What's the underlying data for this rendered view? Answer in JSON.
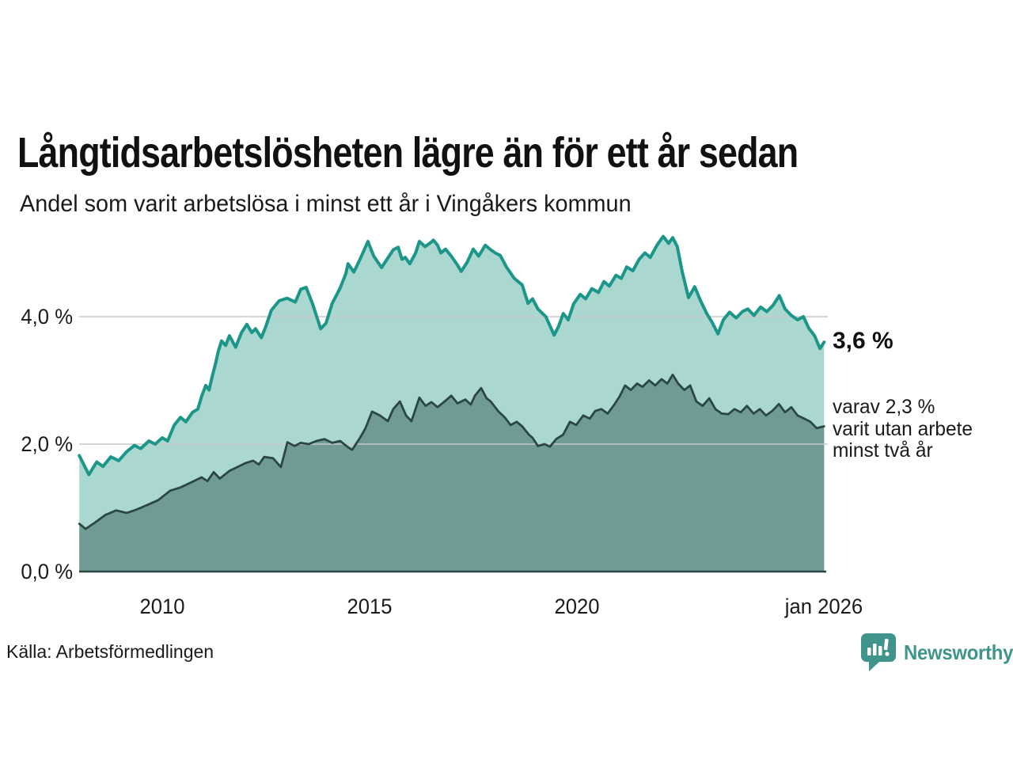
{
  "header": {
    "title": "Långtidsarbetslösheten lägre än för ett år sedan",
    "subtitle": "Andel som varit arbetslösa i minst ett år i Vingåkers kommun"
  },
  "annotations": {
    "latest_total": "3,6 %",
    "sub_annotation": "varav 2,3 %\nvarit utan arbete\nminst två år"
  },
  "footer": {
    "source": "Källa: Arbetsförmedlingen",
    "logo_text": "Newsworthy"
  },
  "colors": {
    "series1_line": "#1b9688",
    "series1_fill": "#aad8d0",
    "series2_line": "#2b4743",
    "series2_fill": "#6f9b94",
    "gridline": "#c9c9c9",
    "baseline": "#2b4743",
    "logo_teal": "#3f948b"
  },
  "chart_data": {
    "type": "area",
    "title": "Långtidsarbetslösheten lägre än för ett år sedan",
    "subtitle": "Andel som varit arbetslösa i minst ett år i Vingåkers kommun",
    "unit": "%",
    "grid": true,
    "legend": "none (annotated at line ends)",
    "xlim": [
      2008.0,
      2026.0
    ],
    "ylim": [
      0,
      5.6
    ],
    "x_ticks": [
      {
        "year": 2010,
        "label": "2010"
      },
      {
        "year": 2015,
        "label": "2015"
      },
      {
        "year": 2020,
        "label": "2020"
      },
      {
        "year": 2025.96,
        "label": "jan 2026"
      }
    ],
    "y_ticks": [
      {
        "value": 0,
        "label": "0,0 %"
      },
      {
        "value": 2,
        "label": "2,0 %"
      },
      {
        "value": 4,
        "label": "4,0 %"
      }
    ],
    "series": [
      {
        "name": "Andel arbetslösa minst ett år",
        "latest_label": "3,6 %",
        "line_color": "#1b9688",
        "fill_color": "#aad8d0",
        "line_width": 4,
        "points": [
          [
            2008.0,
            1.82
          ],
          [
            2008.23,
            1.52
          ],
          [
            2008.42,
            1.72
          ],
          [
            2008.57,
            1.65
          ],
          [
            2008.76,
            1.8
          ],
          [
            2008.95,
            1.74
          ],
          [
            2009.14,
            1.88
          ],
          [
            2009.33,
            1.98
          ],
          [
            2009.48,
            1.93
          ],
          [
            2009.68,
            2.05
          ],
          [
            2009.83,
            2.0
          ],
          [
            2010.0,
            2.1
          ],
          [
            2010.13,
            2.05
          ],
          [
            2010.29,
            2.3
          ],
          [
            2010.44,
            2.42
          ],
          [
            2010.57,
            2.35
          ],
          [
            2010.73,
            2.5
          ],
          [
            2010.86,
            2.55
          ],
          [
            2010.95,
            2.75
          ],
          [
            2011.05,
            2.92
          ],
          [
            2011.13,
            2.85
          ],
          [
            2011.2,
            3.05
          ],
          [
            2011.28,
            3.25
          ],
          [
            2011.35,
            3.45
          ],
          [
            2011.43,
            3.62
          ],
          [
            2011.53,
            3.55
          ],
          [
            2011.62,
            3.7
          ],
          [
            2011.72,
            3.58
          ],
          [
            2011.77,
            3.52
          ],
          [
            2011.91,
            3.75
          ],
          [
            2012.04,
            3.88
          ],
          [
            2012.16,
            3.75
          ],
          [
            2012.25,
            3.81
          ],
          [
            2012.39,
            3.67
          ],
          [
            2012.5,
            3.85
          ],
          [
            2012.63,
            4.1
          ],
          [
            2012.82,
            4.25
          ],
          [
            2013.01,
            4.29
          ],
          [
            2013.21,
            4.23
          ],
          [
            2013.34,
            4.43
          ],
          [
            2013.47,
            4.46
          ],
          [
            2013.62,
            4.21
          ],
          [
            2013.82,
            3.81
          ],
          [
            2013.95,
            3.9
          ],
          [
            2014.1,
            4.21
          ],
          [
            2014.29,
            4.45
          ],
          [
            2014.43,
            4.68
          ],
          [
            2014.48,
            4.83
          ],
          [
            2014.62,
            4.7
          ],
          [
            2014.77,
            4.9
          ],
          [
            2014.96,
            5.18
          ],
          [
            2015.1,
            4.95
          ],
          [
            2015.29,
            4.77
          ],
          [
            2015.44,
            4.92
          ],
          [
            2015.57,
            5.05
          ],
          [
            2015.69,
            5.09
          ],
          [
            2015.78,
            4.9
          ],
          [
            2015.86,
            4.93
          ],
          [
            2015.97,
            4.83
          ],
          [
            2016.11,
            5.0
          ],
          [
            2016.2,
            5.18
          ],
          [
            2016.34,
            5.1
          ],
          [
            2016.45,
            5.15
          ],
          [
            2016.54,
            5.2
          ],
          [
            2016.64,
            5.12
          ],
          [
            2016.72,
            5.0
          ],
          [
            2016.83,
            5.06
          ],
          [
            2016.97,
            4.95
          ],
          [
            2017.12,
            4.81
          ],
          [
            2017.21,
            4.71
          ],
          [
            2017.35,
            4.85
          ],
          [
            2017.5,
            5.06
          ],
          [
            2017.63,
            4.95
          ],
          [
            2017.79,
            5.12
          ],
          [
            2017.92,
            5.05
          ],
          [
            2018.03,
            5.0
          ],
          [
            2018.15,
            4.96
          ],
          [
            2018.3,
            4.78
          ],
          [
            2018.49,
            4.6
          ],
          [
            2018.68,
            4.5
          ],
          [
            2018.82,
            4.21
          ],
          [
            2018.93,
            4.28
          ],
          [
            2019.06,
            4.12
          ],
          [
            2019.25,
            4.0
          ],
          [
            2019.45,
            3.71
          ],
          [
            2019.56,
            3.85
          ],
          [
            2019.67,
            4.05
          ],
          [
            2019.79,
            3.95
          ],
          [
            2019.92,
            4.2
          ],
          [
            2020.08,
            4.35
          ],
          [
            2020.21,
            4.28
          ],
          [
            2020.36,
            4.44
          ],
          [
            2020.52,
            4.38
          ],
          [
            2020.65,
            4.55
          ],
          [
            2020.78,
            4.48
          ],
          [
            2020.94,
            4.65
          ],
          [
            2021.07,
            4.6
          ],
          [
            2021.2,
            4.78
          ],
          [
            2021.35,
            4.72
          ],
          [
            2021.5,
            4.9
          ],
          [
            2021.64,
            5.0
          ],
          [
            2021.77,
            4.93
          ],
          [
            2021.93,
            5.12
          ],
          [
            2022.08,
            5.26
          ],
          [
            2022.21,
            5.15
          ],
          [
            2022.31,
            5.24
          ],
          [
            2022.42,
            5.1
          ],
          [
            2022.54,
            4.7
          ],
          [
            2022.69,
            4.3
          ],
          [
            2022.84,
            4.47
          ],
          [
            2022.98,
            4.25
          ],
          [
            2023.13,
            4.05
          ],
          [
            2023.26,
            3.91
          ],
          [
            2023.4,
            3.73
          ],
          [
            2023.53,
            3.95
          ],
          [
            2023.68,
            4.07
          ],
          [
            2023.84,
            3.98
          ],
          [
            2023.99,
            4.08
          ],
          [
            2024.12,
            4.12
          ],
          [
            2024.27,
            4.02
          ],
          [
            2024.43,
            4.15
          ],
          [
            2024.58,
            4.08
          ],
          [
            2024.73,
            4.18
          ],
          [
            2024.88,
            4.33
          ],
          [
            2025.02,
            4.12
          ],
          [
            2025.17,
            4.02
          ],
          [
            2025.32,
            3.95
          ],
          [
            2025.46,
            4.0
          ],
          [
            2025.59,
            3.82
          ],
          [
            2025.73,
            3.7
          ],
          [
            2025.86,
            3.5
          ],
          [
            2025.96,
            3.6
          ]
        ]
      },
      {
        "name": "varav utan arbete minst två år",
        "latest_label": "varav 2,3 %",
        "line_color": "#2b4743",
        "fill_color": "#6f9b94",
        "line_width": 2.8,
        "points": [
          [
            2008.0,
            0.75
          ],
          [
            2008.15,
            0.67
          ],
          [
            2008.38,
            0.77
          ],
          [
            2008.63,
            0.89
          ],
          [
            2008.89,
            0.96
          ],
          [
            2009.14,
            0.92
          ],
          [
            2009.37,
            0.97
          ],
          [
            2009.62,
            1.04
          ],
          [
            2009.9,
            1.12
          ],
          [
            2010.19,
            1.27
          ],
          [
            2010.44,
            1.32
          ],
          [
            2010.73,
            1.41
          ],
          [
            2010.95,
            1.48
          ],
          [
            2011.09,
            1.42
          ],
          [
            2011.24,
            1.56
          ],
          [
            2011.39,
            1.46
          ],
          [
            2011.62,
            1.58
          ],
          [
            2011.81,
            1.64
          ],
          [
            2012.0,
            1.7
          ],
          [
            2012.19,
            1.74
          ],
          [
            2012.33,
            1.68
          ],
          [
            2012.46,
            1.8
          ],
          [
            2012.67,
            1.78
          ],
          [
            2012.86,
            1.64
          ],
          [
            2013.02,
            2.03
          ],
          [
            2013.19,
            1.97
          ],
          [
            2013.34,
            2.02
          ],
          [
            2013.53,
            2.0
          ],
          [
            2013.72,
            2.05
          ],
          [
            2013.91,
            2.08
          ],
          [
            2014.1,
            2.02
          ],
          [
            2014.29,
            2.05
          ],
          [
            2014.48,
            1.95
          ],
          [
            2014.58,
            1.91
          ],
          [
            2014.77,
            2.1
          ],
          [
            2014.9,
            2.25
          ],
          [
            2015.06,
            2.51
          ],
          [
            2015.25,
            2.45
          ],
          [
            2015.44,
            2.36
          ],
          [
            2015.57,
            2.55
          ],
          [
            2015.73,
            2.67
          ],
          [
            2015.88,
            2.45
          ],
          [
            2016.01,
            2.36
          ],
          [
            2016.2,
            2.73
          ],
          [
            2016.35,
            2.6
          ],
          [
            2016.49,
            2.66
          ],
          [
            2016.64,
            2.58
          ],
          [
            2016.81,
            2.67
          ],
          [
            2016.97,
            2.76
          ],
          [
            2017.12,
            2.64
          ],
          [
            2017.31,
            2.7
          ],
          [
            2017.44,
            2.62
          ],
          [
            2017.54,
            2.76
          ],
          [
            2017.69,
            2.88
          ],
          [
            2017.82,
            2.72
          ],
          [
            2017.92,
            2.67
          ],
          [
            2018.11,
            2.51
          ],
          [
            2018.26,
            2.42
          ],
          [
            2018.4,
            2.3
          ],
          [
            2018.55,
            2.35
          ],
          [
            2018.68,
            2.28
          ],
          [
            2018.84,
            2.15
          ],
          [
            2018.93,
            2.1
          ],
          [
            2019.06,
            1.97
          ],
          [
            2019.22,
            2.0
          ],
          [
            2019.35,
            1.96
          ],
          [
            2019.5,
            2.08
          ],
          [
            2019.67,
            2.15
          ],
          [
            2019.83,
            2.35
          ],
          [
            2019.98,
            2.3
          ],
          [
            2020.15,
            2.45
          ],
          [
            2020.31,
            2.4
          ],
          [
            2020.44,
            2.52
          ],
          [
            2020.59,
            2.55
          ],
          [
            2020.74,
            2.48
          ],
          [
            2020.9,
            2.62
          ],
          [
            2021.03,
            2.75
          ],
          [
            2021.16,
            2.92
          ],
          [
            2021.3,
            2.85
          ],
          [
            2021.45,
            2.95
          ],
          [
            2021.58,
            2.9
          ],
          [
            2021.74,
            3.0
          ],
          [
            2021.89,
            2.92
          ],
          [
            2022.04,
            3.02
          ],
          [
            2022.18,
            2.95
          ],
          [
            2022.31,
            3.09
          ],
          [
            2022.44,
            2.95
          ],
          [
            2022.59,
            2.85
          ],
          [
            2022.73,
            2.92
          ],
          [
            2022.88,
            2.67
          ],
          [
            2023.03,
            2.6
          ],
          [
            2023.19,
            2.72
          ],
          [
            2023.34,
            2.55
          ],
          [
            2023.49,
            2.48
          ],
          [
            2023.65,
            2.47
          ],
          [
            2023.8,
            2.55
          ],
          [
            2023.95,
            2.5
          ],
          [
            2024.1,
            2.6
          ],
          [
            2024.26,
            2.48
          ],
          [
            2024.41,
            2.55
          ],
          [
            2024.56,
            2.45
          ],
          [
            2024.71,
            2.52
          ],
          [
            2024.87,
            2.63
          ],
          [
            2025.02,
            2.5
          ],
          [
            2025.17,
            2.58
          ],
          [
            2025.32,
            2.45
          ],
          [
            2025.48,
            2.4
          ],
          [
            2025.63,
            2.35
          ],
          [
            2025.78,
            2.25
          ],
          [
            2025.96,
            2.28
          ]
        ]
      }
    ]
  }
}
